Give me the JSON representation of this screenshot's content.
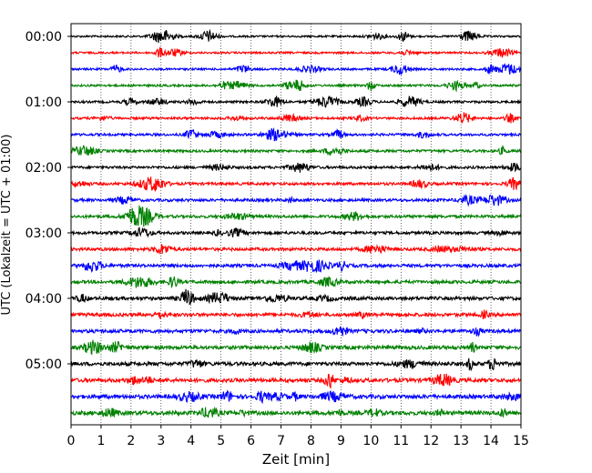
{
  "chart_data": {
    "type": "line",
    "title": "",
    "xlabel": "Zeit  [min]",
    "ylabel": "UTC (Lokalzeit = UTC + 01:00)",
    "xlim": [
      0,
      15
    ],
    "x_ticks": [
      "0",
      "1",
      "2",
      "3",
      "4",
      "5",
      "6",
      "7",
      "8",
      "9",
      "10",
      "11",
      "12",
      "13",
      "14",
      "15"
    ],
    "y_tick_labels": [
      "00:00",
      "01:00",
      "02:00",
      "03:00",
      "04:00",
      "05:00"
    ],
    "trace_interval_min": 15,
    "trace_count": 24,
    "grid": "vertical-dotted",
    "colors": [
      "#000000",
      "#ff0000",
      "#0000ff",
      "#008000"
    ]
  }
}
